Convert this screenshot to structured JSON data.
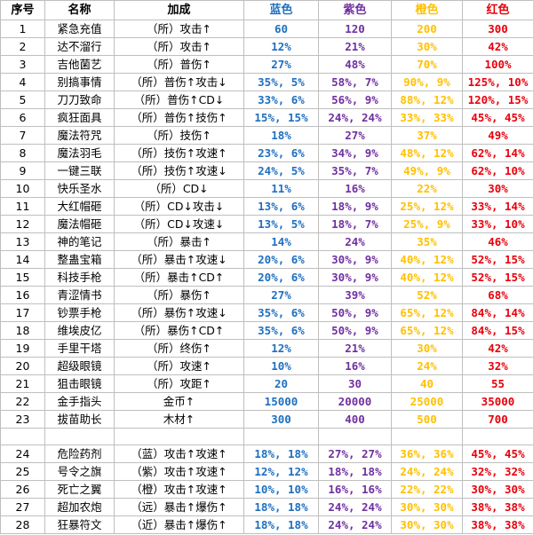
{
  "colors": {
    "blue": "#1f6fc0",
    "purple": "#7030a0",
    "orange": "#ffc000",
    "red": "#e8000b"
  },
  "headers": [
    "序号",
    "名称",
    "加成",
    "蓝色",
    "紫色",
    "橙色",
    "红色"
  ],
  "rows": [
    [
      "1",
      "紧急充值",
      "（所）攻击↑",
      "60",
      "120",
      "200",
      "300"
    ],
    [
      "2",
      "达不溜行",
      "（所）攻击↑",
      "12%",
      "21%",
      "30%",
      "42%"
    ],
    [
      "3",
      "吉他菌艺",
      "（所）普伤↑",
      "27%",
      "48%",
      "70%",
      "100%"
    ],
    [
      "4",
      "别搞事情",
      "（所）普伤↑攻击↓",
      "35%, 5%",
      "58%, 7%",
      "90%, 9%",
      "125%, 10%"
    ],
    [
      "5",
      "刀刀致命",
      "（所）普伤↑CD↓",
      "33%, 6%",
      "56%, 9%",
      "88%, 12%",
      "120%, 15%"
    ],
    [
      "6",
      "疯狂面具",
      "（所）普伤↑技伤↑",
      "15%, 15%",
      "24%, 24%",
      "33%, 33%",
      "45%, 45%"
    ],
    [
      "7",
      "魔法符咒",
      "（所）技伤↑",
      "18%",
      "27%",
      "37%",
      "49%"
    ],
    [
      "8",
      "魔法羽毛",
      "（所）技伤↑攻速↑",
      "23%, 6%",
      "34%, 9%",
      "48%, 12%",
      "62%, 14%"
    ],
    [
      "9",
      "一键三联",
      "（所）技伤↑攻速↓",
      "24%, 5%",
      "35%, 7%",
      "49%, 9%",
      "62%, 10%"
    ],
    [
      "10",
      "快乐圣水",
      "（所）CD↓",
      "11%",
      "16%",
      "22%",
      "30%"
    ],
    [
      "11",
      "大红帽砸",
      "（所）CD↓攻击↓",
      "13%, 6%",
      "18%, 9%",
      "25%, 12%",
      "33%, 14%"
    ],
    [
      "12",
      "魔法帽砸",
      "（所）CD↓攻速↓",
      "13%, 5%",
      "18%, 7%",
      "25%, 9%",
      "33%, 10%"
    ],
    [
      "13",
      "神的笔记",
      "（所）暴击↑",
      "14%",
      "24%",
      "35%",
      "46%"
    ],
    [
      "14",
      "整蛊宝箱",
      "（所）暴击↑攻速↓",
      "20%, 6%",
      "30%, 9%",
      "40%, 12%",
      "52%, 15%"
    ],
    [
      "15",
      "科技手枪",
      "（所）暴击↑CD↑",
      "20%, 6%",
      "30%, 9%",
      "40%, 12%",
      "52%, 15%"
    ],
    [
      "16",
      "青涩情书",
      "（所）暴伤↑",
      "27%",
      "39%",
      "52%",
      "68%"
    ],
    [
      "17",
      "钞票手枪",
      "（所）暴伤↑攻速↓",
      "35%, 6%",
      "50%, 9%",
      "65%, 12%",
      "84%, 14%"
    ],
    [
      "18",
      "维埃皮亿",
      "（所）暴伤↑CD↑",
      "35%, 6%",
      "50%, 9%",
      "65%, 12%",
      "84%, 15%"
    ],
    [
      "19",
      "手里干塔",
      "（所）终伤↑",
      "12%",
      "21%",
      "30%",
      "42%"
    ],
    [
      "20",
      "超级眼镜",
      "（所）攻速↑",
      "10%",
      "16%",
      "24%",
      "32%"
    ],
    [
      "21",
      "狙击眼镜",
      "（所）攻距↑",
      "20",
      "30",
      "40",
      "55"
    ],
    [
      "22",
      "金手指头",
      "金币↑",
      "15000",
      "20000",
      "25000",
      "35000"
    ],
    [
      "23",
      "拔苗助长",
      "木材↑",
      "300",
      "400",
      "500",
      "700"
    ]
  ],
  "rows2": [
    [
      "24",
      "危险药剂",
      "（蓝）攻击↑攻速↑",
      "18%, 18%",
      "27%, 27%",
      "36%, 36%",
      "45%, 45%"
    ],
    [
      "25",
      "号令之旗",
      "（紫）攻击↑攻速↑",
      "12%, 12%",
      "18%, 18%",
      "24%, 24%",
      "32%, 32%"
    ],
    [
      "26",
      "死亡之翼",
      "（橙）攻击↑攻速↑",
      "10%, 10%",
      "16%, 16%",
      "22%, 22%",
      "30%, 30%"
    ],
    [
      "27",
      "超加农炮",
      "（远）暴击↑爆伤↑",
      "18%, 18%",
      "24%, 24%",
      "30%, 30%",
      "38%, 38%"
    ],
    [
      "28",
      "狂暴符文",
      "（近）暴击↑爆伤↑",
      "18%, 18%",
      "24%, 24%",
      "30%, 30%",
      "38%, 38%"
    ]
  ]
}
